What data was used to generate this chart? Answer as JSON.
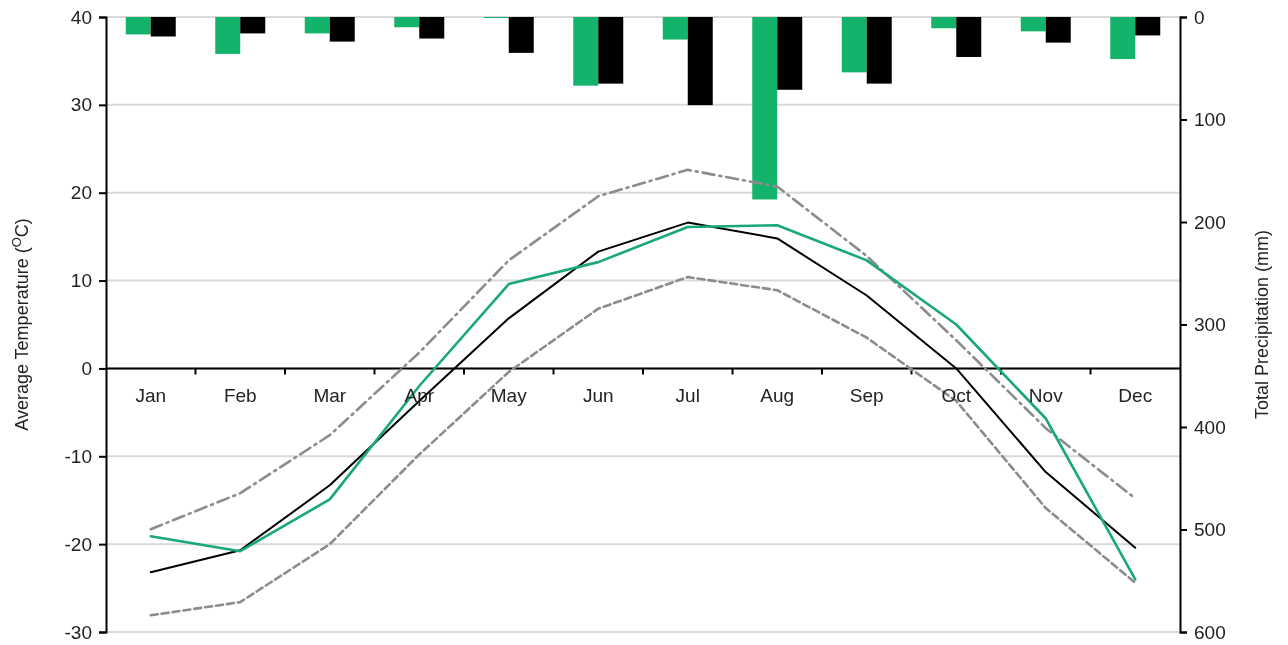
{
  "chart_data": {
    "type": "line",
    "ylabel": "Average Temperature ($^{O}$C)",
    "y2label": "Total Precipitation (mm)",
    "categories": [
      "Jan",
      "Feb",
      "Mar",
      "Apr",
      "May",
      "Jun",
      "Jul",
      "Aug",
      "Sep",
      "Oct",
      "Nov",
      "Dec"
    ],
    "ylim": [
      -30,
      40
    ],
    "yticks": [
      -30,
      -20,
      -10,
      0,
      10,
      20,
      30,
      40
    ],
    "y2lim": [
      600,
      0
    ],
    "y2ticks": [
      0,
      100,
      200,
      300,
      400,
      500,
      600
    ],
    "grid": "y",
    "marker": "none",
    "series": [
      {
        "type": "bar",
        "axis": "y2",
        "color": "#14b36b",
        "values": [
          17,
          36,
          16,
          10,
          1,
          67,
          22,
          178,
          54,
          11,
          14,
          41
        ]
      },
      {
        "type": "bar",
        "axis": "y2",
        "color": "#000000",
        "values": [
          19,
          16,
          24,
          21,
          35,
          65,
          86,
          71,
          65,
          39,
          25,
          18
        ]
      },
      {
        "color": "#8c8c8c",
        "line_style": "dashdot",
        "values": [
          -18.3,
          -14.2,
          -7.6,
          1.8,
          12.3,
          19.6,
          22.6,
          20.7,
          12.8,
          3.2,
          -6.8,
          -14.8
        ]
      },
      {
        "color": "#8c8c8c",
        "line_style": "dashed",
        "values": [
          -28.1,
          -26.6,
          -20.0,
          -9.8,
          -0.4,
          6.8,
          10.4,
          8.9,
          3.5,
          -3.7,
          -15.9,
          -24.4
        ]
      },
      {
        "color": "#000000",
        "line_style": "solid",
        "values": [
          -23.2,
          -20.7,
          -13.3,
          -3.7,
          5.7,
          13.3,
          16.6,
          14.8,
          8.3,
          0.0,
          -11.8,
          -20.4
        ]
      },
      {
        "color": "#1aa87a",
        "line_style": "solid",
        "values": [
          -19.1,
          -20.8,
          -14.9,
          -2.0,
          9.6,
          12.1,
          16.1,
          16.3,
          12.3,
          5.0,
          -5.7,
          -24.0
        ]
      }
    ]
  }
}
